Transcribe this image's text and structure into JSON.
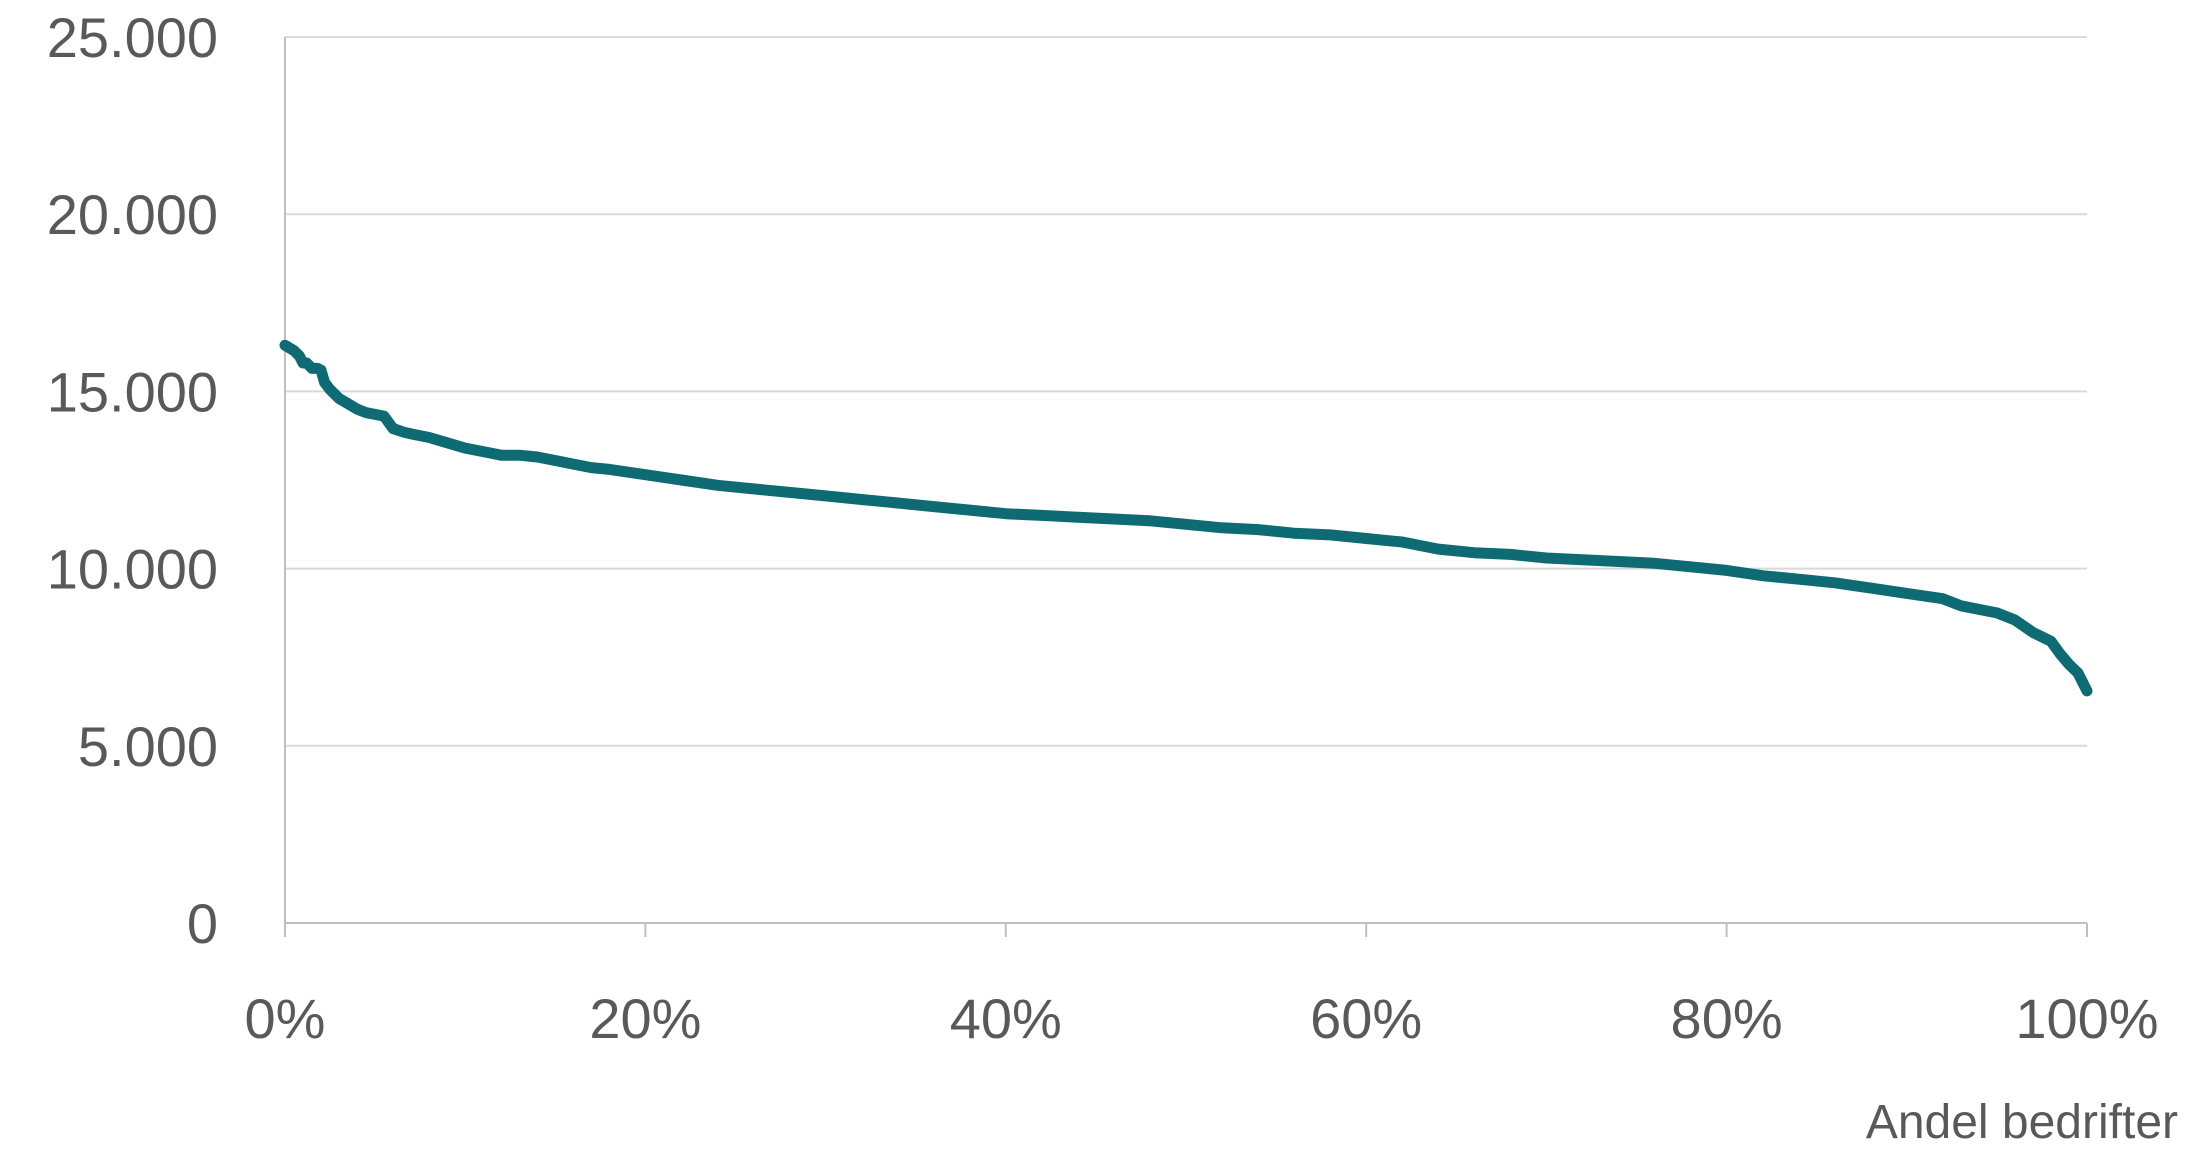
{
  "chart_data": {
    "type": "line",
    "title": "",
    "xlabel": "Andel bedrifter",
    "ylabel": "",
    "xlim": [
      0,
      100
    ],
    "ylim": [
      0,
      25000
    ],
    "grid": true,
    "legend": "none",
    "x_tick_values": [
      0,
      20,
      40,
      60,
      80,
      100
    ],
    "x_tick_labels": [
      "0%",
      "20%",
      "40%",
      "60%",
      "80%",
      "100%"
    ],
    "y_tick_values": [
      0,
      5000,
      10000,
      15000,
      20000,
      25000
    ],
    "y_tick_labels": [
      "0",
      "5.000",
      "10.000",
      "15.000",
      "20.000",
      "25.000"
    ],
    "colors": {
      "line": "#0f6b73",
      "grid": "#d9d9d9",
      "axis": "#bfbfbf",
      "text": "#595959"
    },
    "series": [
      {
        "x": [
          0,
          0.5,
          0.8,
          1.0,
          1.2,
          1.5,
          1.8,
          2.0,
          2.2,
          2.5,
          2.8,
          3.0,
          3.5,
          4.0,
          4.5,
          5.0,
          5.5,
          6.0,
          6.3,
          6.6,
          7.0,
          8.0,
          9.0,
          10.0,
          11.0,
          12.0,
          13.0,
          14.0,
          15.0,
          16.0,
          17.0,
          18.0,
          20.0,
          22.0,
          24.0,
          26.0,
          28.0,
          30.0,
          32.0,
          34.0,
          36.0,
          38.0,
          40.0,
          42.0,
          44.0,
          46.0,
          48.0,
          50.0,
          52.0,
          54.0,
          56.0,
          58.0,
          60.0,
          62.0,
          64.0,
          66.0,
          68.0,
          70.0,
          72.0,
          74.0,
          76.0,
          78.0,
          80.0,
          82.0,
          84.0,
          86.0,
          88.0,
          90.0,
          92.0,
          93.0,
          94.0,
          95.0,
          96.0,
          97.0,
          98.0,
          98.5,
          99.0,
          99.5,
          100.0
        ],
        "values": [
          16300,
          16150,
          16000,
          15800,
          15800,
          15650,
          15650,
          15600,
          15250,
          15050,
          14900,
          14800,
          14650,
          14500,
          14400,
          14350,
          14300,
          13950,
          13900,
          13850,
          13800,
          13700,
          13550,
          13400,
          13300,
          13200,
          13200,
          13150,
          13050,
          12950,
          12850,
          12800,
          12650,
          12500,
          12350,
          12250,
          12150,
          12050,
          11950,
          11850,
          11750,
          11650,
          11550,
          11500,
          11450,
          11400,
          11350,
          11250,
          11150,
          11100,
          11000,
          10950,
          10850,
          10750,
          10550,
          10450,
          10400,
          10300,
          10250,
          10200,
          10150,
          10050,
          9950,
          9800,
          9700,
          9600,
          9450,
          9300,
          9150,
          8950,
          8850,
          8750,
          8550,
          8200,
          7950,
          7600,
          7300,
          7050,
          6550
        ]
      }
    ]
  }
}
